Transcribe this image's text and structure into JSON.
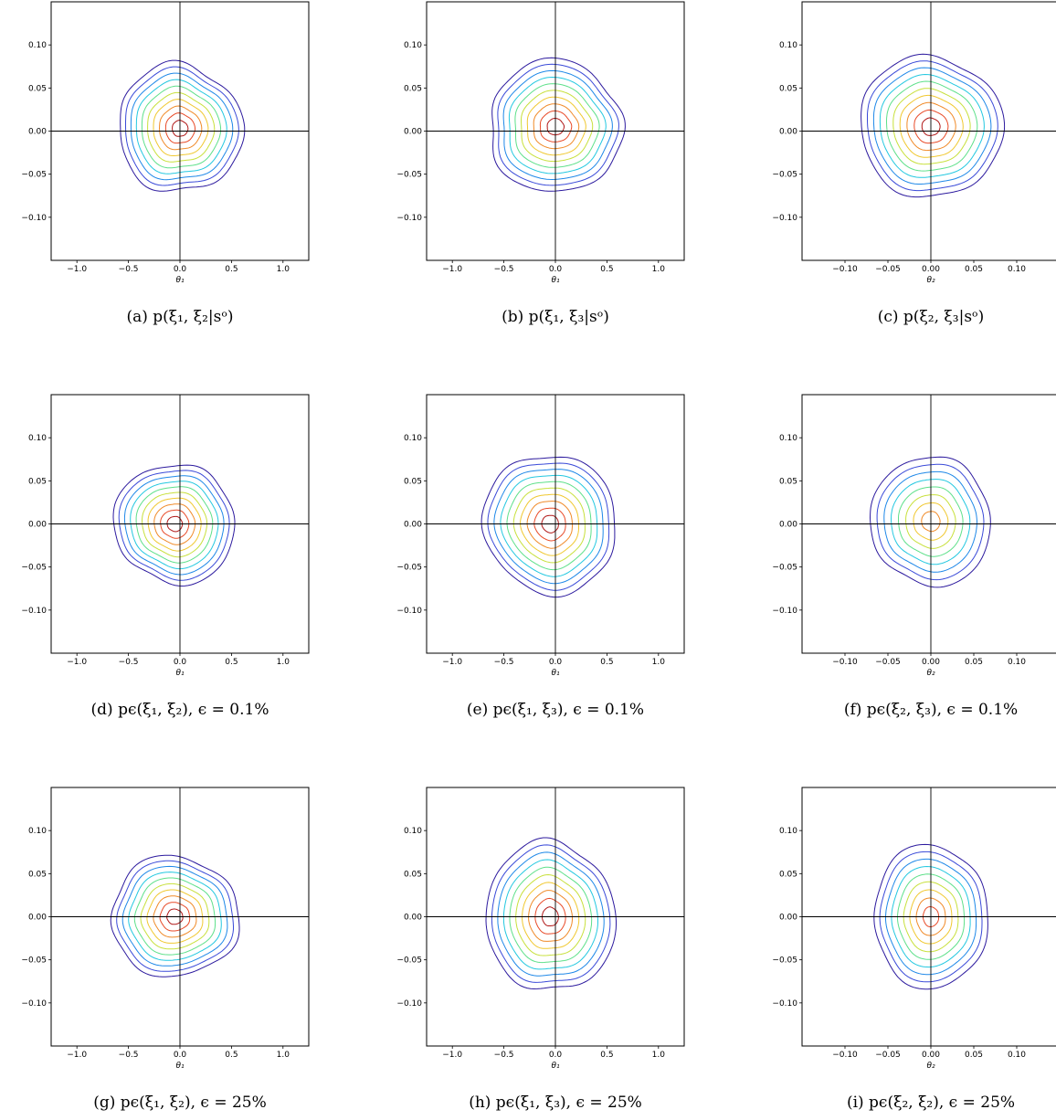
{
  "figure": {
    "colors": {
      "levels": [
        "#2c1a9e",
        "#3a4ad8",
        "#1e88e8",
        "#24c8e0",
        "#5ee08a",
        "#c8e03c",
        "#f0c830",
        "#f08a28",
        "#e84a28",
        "#b01818"
      ],
      "axis": "#000000",
      "background": "#ffffff"
    }
  },
  "chart_data": [
    {
      "type": "contour",
      "caption": "(a) p(ξ₁, ξ₂|sᵒ)",
      "xlabel": "θ₁",
      "xlim": [
        -1.25,
        1.25
      ],
      "ylim": [
        -0.15,
        0.15
      ],
      "xticks": [
        "-1.0",
        "-0.5",
        "0.0",
        "0.5",
        "1.0"
      ],
      "yticks": [
        "0.10",
        "0.05",
        "0.00",
        "-0.05",
        "-0.10"
      ],
      "center": [
        0.0,
        0.003
      ],
      "spread": [
        0.62,
        0.072
      ],
      "tilt_deg": -28,
      "levels": 10,
      "wobble": 0.07,
      "seed": 1
    },
    {
      "type": "contour",
      "caption": "(b) p(ξ₁, ξ₃|sᵒ)",
      "xlabel": "θ₁",
      "xlim": [
        -1.25,
        1.25
      ],
      "ylim": [
        -0.15,
        0.15
      ],
      "xticks": [
        "-1.0",
        "-0.5",
        "0.0",
        "0.5",
        "1.0"
      ],
      "yticks": [
        "0.10",
        "0.05",
        "0.00",
        "-0.05",
        "-0.10"
      ],
      "center": [
        0.0,
        0.005
      ],
      "spread": [
        0.66,
        0.075
      ],
      "tilt_deg": 0,
      "levels": 10,
      "wobble": 0.06,
      "seed": 2
    },
    {
      "type": "contour",
      "caption": "(c) p(ξ₂, ξ₃|sᵒ)",
      "xlabel": "θ₂",
      "xlim": [
        -0.15,
        0.15
      ],
      "ylim": [
        -0.15,
        0.15
      ],
      "xticks": [
        "-0.10",
        "-0.05",
        "0.00",
        "0.05",
        "0.10"
      ],
      "yticks": [
        "0.10",
        "0.05",
        "0.00",
        "-0.05",
        "-0.10"
      ],
      "center": [
        0.0,
        0.005
      ],
      "spread": [
        0.085,
        0.08
      ],
      "tilt_deg": 0,
      "levels": 10,
      "wobble": 0.05,
      "seed": 3
    },
    {
      "type": "contour",
      "caption": "(d) pϵ(ξ₁, ξ₂), ϵ = 0.1%",
      "xlabel": "θ₁",
      "xlim": [
        -1.25,
        1.25
      ],
      "ylim": [
        -0.15,
        0.15
      ],
      "xticks": [
        "-1.0",
        "-0.5",
        "0.0",
        "0.5",
        "1.0"
      ],
      "yticks": [
        "0.10",
        "0.05",
        "0.00",
        "-0.05",
        "-0.10"
      ],
      "center": [
        -0.05,
        0.0
      ],
      "spread": [
        0.58,
        0.07
      ],
      "tilt_deg": -30,
      "levels": 10,
      "wobble": 0.05,
      "seed": 4
    },
    {
      "type": "contour",
      "caption": "(e) pϵ(ξ₁, ξ₃), ϵ = 0.1%",
      "xlabel": "θ₁",
      "xlim": [
        -1.25,
        1.25
      ],
      "ylim": [
        -0.15,
        0.15
      ],
      "xticks": [
        "-1.0",
        "-0.5",
        "0.0",
        "0.5",
        "1.0"
      ],
      "yticks": [
        "0.10",
        "0.05",
        "0.00",
        "-0.05",
        "-0.10"
      ],
      "center": [
        -0.05,
        0.0
      ],
      "spread": [
        0.65,
        0.08
      ],
      "tilt_deg": 0,
      "levels": 10,
      "wobble": 0.05,
      "seed": 5
    },
    {
      "type": "contour",
      "caption": "(f) pϵ(ξ₂, ξ₃), ϵ = 0.1%",
      "xlabel": "θ₂",
      "xlim": [
        -0.15,
        0.15
      ],
      "ylim": [
        -0.15,
        0.15
      ],
      "xticks": [
        "-0.10",
        "-0.05",
        "0.00",
        "0.05",
        "0.10"
      ],
      "yticks": [
        "0.10",
        "0.05",
        "0.00",
        "-0.05",
        "-0.10"
      ],
      "center": [
        0.0,
        0.003
      ],
      "spread": [
        0.07,
        0.075
      ],
      "tilt_deg": 0,
      "levels": 8,
      "wobble": 0.04,
      "seed": 6
    },
    {
      "type": "contour",
      "caption": "(g) pϵ(ξ₁, ξ₂), ϵ = 25%",
      "xlabel": "θ₁",
      "xlim": [
        -1.25,
        1.25
      ],
      "ylim": [
        -0.15,
        0.15
      ],
      "xticks": [
        "-1.0",
        "-0.5",
        "0.0",
        "0.5",
        "1.0"
      ],
      "yticks": [
        "0.10",
        "0.05",
        "0.00",
        "-0.05",
        "-0.10"
      ],
      "center": [
        -0.05,
        0.0
      ],
      "spread": [
        0.6,
        0.072
      ],
      "tilt_deg": -30,
      "levels": 10,
      "wobble": 0.06,
      "seed": 7
    },
    {
      "type": "contour",
      "caption": "(h) pϵ(ξ₁, ξ₃), ϵ = 25%",
      "xlabel": "θ₁",
      "xlim": [
        -1.25,
        1.25
      ],
      "ylim": [
        -0.15,
        0.15
      ],
      "xticks": [
        "-1.0",
        "-0.5",
        "0.0",
        "0.5",
        "1.0"
      ],
      "yticks": [
        "0.10",
        "0.05",
        "0.00",
        "-0.05",
        "-0.10"
      ],
      "center": [
        -0.05,
        0.0
      ],
      "spread": [
        0.62,
        0.088
      ],
      "tilt_deg": 0,
      "levels": 10,
      "wobble": 0.05,
      "seed": 8
    },
    {
      "type": "contour",
      "caption": "(i) pϵ(ξ₂, ξ₂), ϵ = 25%",
      "xlabel": "θ₂",
      "xlim": [
        -0.15,
        0.15
      ],
      "ylim": [
        -0.15,
        0.15
      ],
      "xticks": [
        "-0.10",
        "-0.05",
        "0.00",
        "0.05",
        "0.10"
      ],
      "yticks": [
        "0.10",
        "0.05",
        "0.00",
        "-0.05",
        "-0.10"
      ],
      "center": [
        0.0,
        0.0
      ],
      "spread": [
        0.065,
        0.085
      ],
      "tilt_deg": 0,
      "levels": 9,
      "wobble": 0.04,
      "seed": 9
    }
  ]
}
